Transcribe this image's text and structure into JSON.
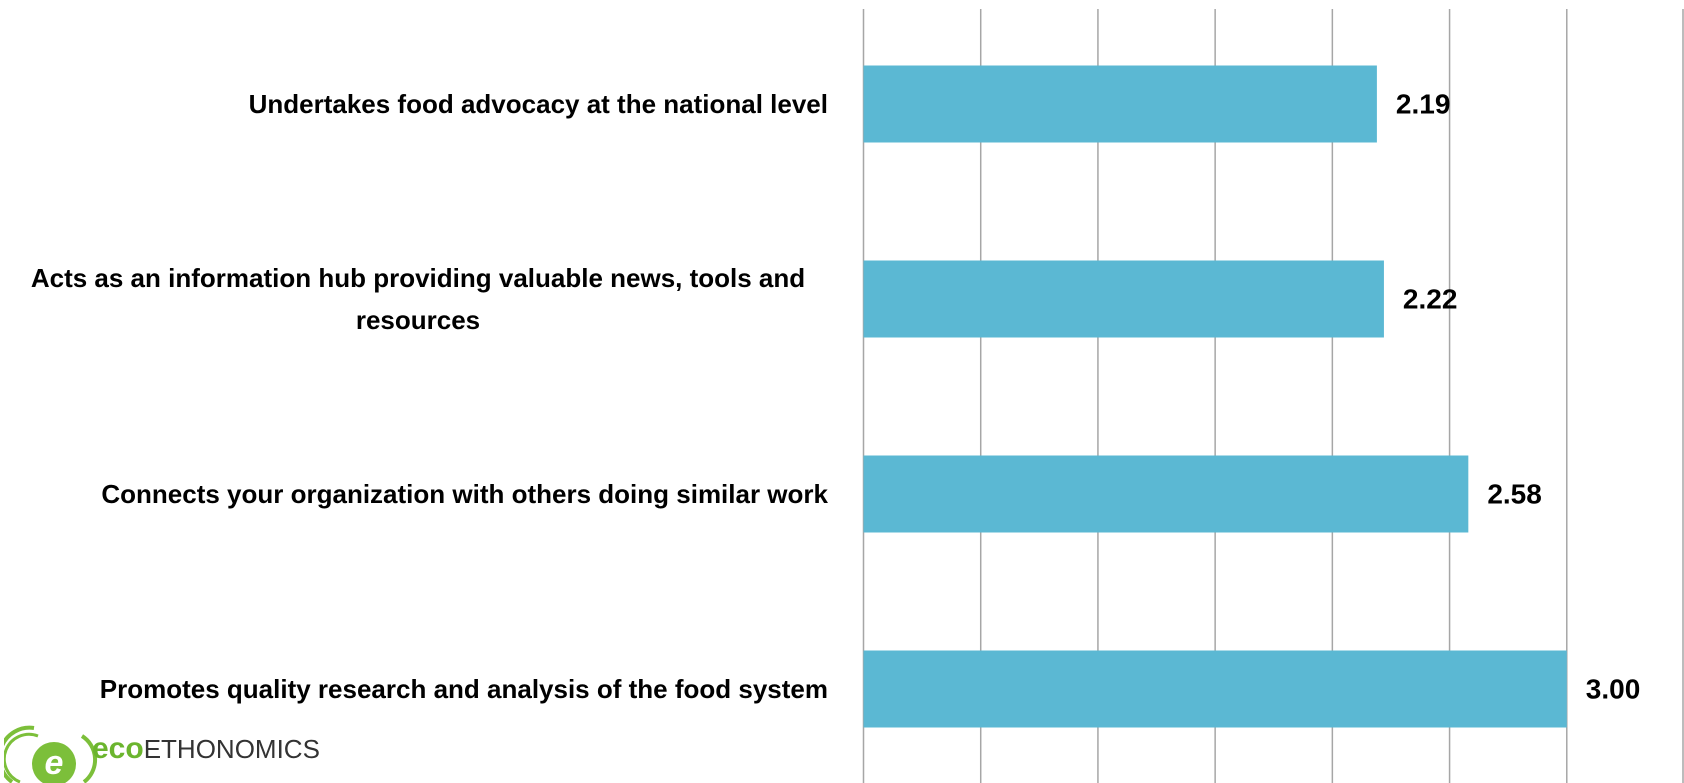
{
  "chart_data": {
    "type": "bar",
    "orientation": "horizontal",
    "categories": [
      "Undertakes food advocacy at the national level",
      "Acts as an information hub providing valuable news, tools and resources",
      "Connects your organization with others doing similar work",
      "Promotes quality research and analysis of the food system"
    ],
    "values": [
      2.19,
      2.22,
      2.58,
      3.0
    ],
    "value_labels": [
      "2.19",
      "2.22",
      "2.58",
      "3.00"
    ],
    "color": "#5bb8d3",
    "xlim": [
      0,
      3.5
    ],
    "xticks": [
      0,
      0.5,
      1,
      1.5,
      2,
      2.5,
      3,
      3.5
    ],
    "grid": true
  },
  "logo": {
    "eco": "eco",
    "rest": "ETHONOMICS"
  }
}
